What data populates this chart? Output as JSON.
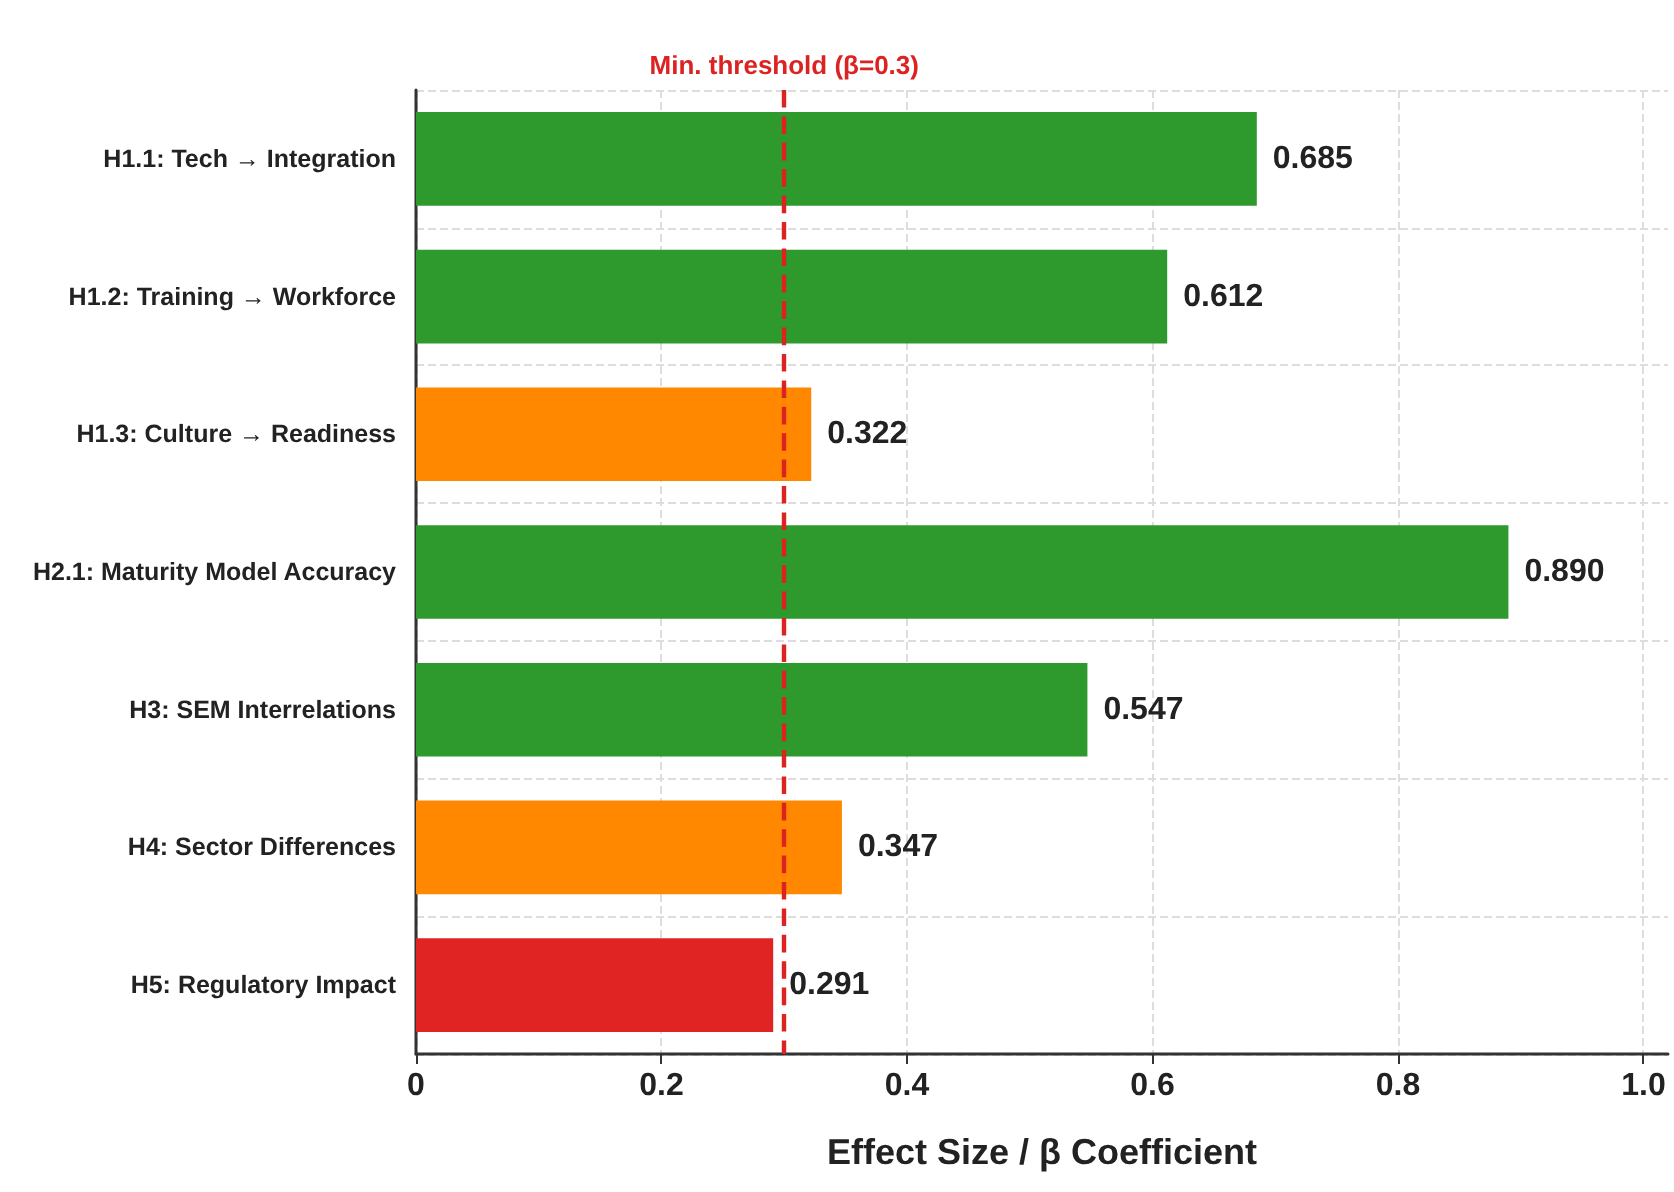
{
  "chart_data": {
    "type": "bar",
    "orientation": "horizontal",
    "xlabel": "Effect Size / β Coefficient",
    "categories": [
      "H1.1: Tech → Integration",
      "H1.2: Training → Workforce",
      "H1.3: Culture → Readiness",
      "H2.1: Maturity Model Accuracy",
      "H3: SEM Interrelations",
      "H4: Sector Differences",
      "H5: Regulatory Impact"
    ],
    "values": [
      0.685,
      0.612,
      0.322,
      0.89,
      0.547,
      0.347,
      0.291
    ],
    "colors": [
      "#2e9a2e",
      "#2e9a2e",
      "#ff8800",
      "#2e9a2e",
      "#2e9a2e",
      "#ff8800",
      "#e02424"
    ],
    "value_labels": [
      "0.685",
      "0.612",
      "0.322",
      "0.890",
      "0.547",
      "0.347",
      "0.291"
    ],
    "xlim": [
      0,
      1.02
    ],
    "xticks": [
      {
        "value": 0,
        "label": "0"
      },
      0.2,
      0.4,
      0.6,
      0.8,
      {
        "value": 1,
        "label": "1.0"
      }
    ],
    "ref_lines": [
      {
        "axis": "x",
        "value": 0.3,
        "label": "Min. threshold (β=0.3)",
        "color": "#dd2222",
        "line_style": "dashed"
      }
    ],
    "grid": true
  }
}
